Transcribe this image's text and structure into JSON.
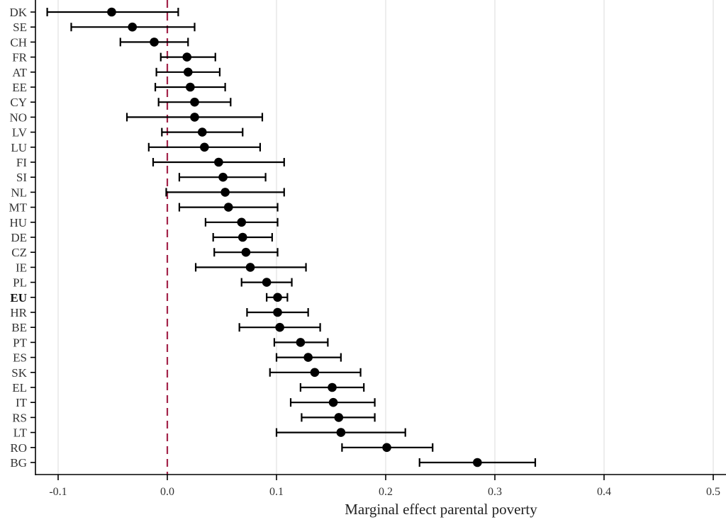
{
  "chart_data": {
    "type": "scatter",
    "subtype": "dot-and-whisker",
    "title": "",
    "xlabel": "Marginal effect parental poverty",
    "ylabel": "",
    "xlim": [
      -0.12,
      0.51
    ],
    "xticks": [
      -0.1,
      0.0,
      0.1,
      0.2,
      0.3,
      0.4,
      0.5
    ],
    "xtick_labels": [
      "-0.1",
      "0.0",
      "0.1",
      "0.2",
      "0.3",
      "0.4",
      "0.5"
    ],
    "grid": "vertical",
    "reference_line": {
      "x": 0.0,
      "style": "dashed",
      "color": "#a3244a"
    },
    "colors": {
      "points": "#000000",
      "grid": "#e3e3e3",
      "axis": "#000000"
    },
    "bold_categories": [
      "EU"
    ],
    "categories": [
      "DK",
      "SE",
      "CH",
      "FR",
      "AT",
      "EE",
      "CY",
      "NO",
      "LV",
      "LU",
      "FI",
      "SI",
      "NL",
      "MT",
      "HU",
      "DE",
      "CZ",
      "IE",
      "PL",
      "EU",
      "HR",
      "BE",
      "PT",
      "ES",
      "SK",
      "EL",
      "IT",
      "RS",
      "LT",
      "RO",
      "BG"
    ],
    "estimate": [
      -0.051,
      -0.032,
      -0.012,
      0.018,
      0.019,
      0.021,
      0.025,
      0.025,
      0.032,
      0.034,
      0.047,
      0.051,
      0.053,
      0.056,
      0.068,
      0.069,
      0.072,
      0.076,
      0.091,
      0.101,
      0.101,
      0.103,
      0.122,
      0.129,
      0.135,
      0.151,
      0.152,
      0.157,
      0.159,
      0.201,
      0.284
    ],
    "ci_low": [
      -0.11,
      -0.088,
      -0.043,
      -0.006,
      -0.01,
      -0.011,
      -0.008,
      -0.037,
      -0.005,
      -0.017,
      -0.013,
      0.011,
      -0.001,
      0.011,
      0.035,
      0.042,
      0.043,
      0.026,
      0.068,
      0.091,
      0.073,
      0.066,
      0.098,
      0.1,
      0.094,
      0.122,
      0.113,
      0.123,
      0.1,
      0.16,
      0.231
    ],
    "ci_high": [
      0.01,
      0.025,
      0.019,
      0.044,
      0.048,
      0.053,
      0.058,
      0.087,
      0.069,
      0.085,
      0.107,
      0.09,
      0.107,
      0.101,
      0.101,
      0.096,
      0.101,
      0.127,
      0.114,
      0.11,
      0.129,
      0.14,
      0.147,
      0.159,
      0.177,
      0.18,
      0.19,
      0.19,
      0.218,
      0.243,
      0.337
    ]
  }
}
